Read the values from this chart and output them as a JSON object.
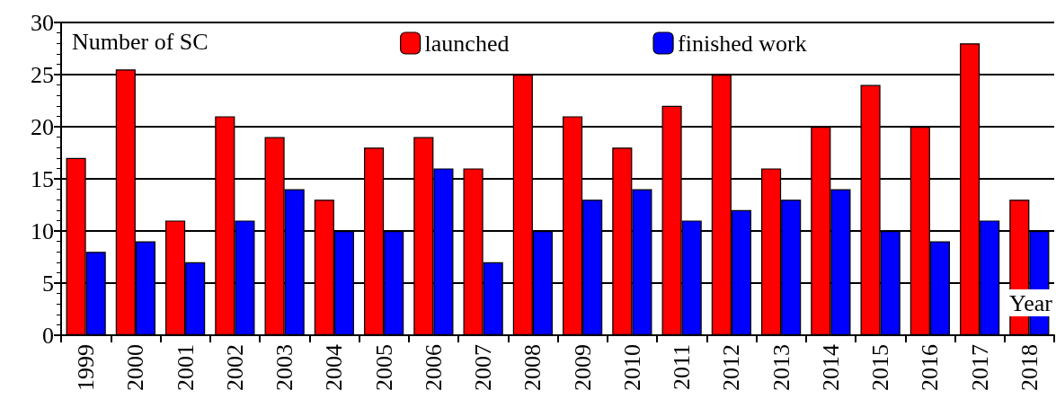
{
  "chart_data": {
    "type": "bar",
    "ylabel": "Number of SC",
    "xlabel": "Year",
    "categories": [
      "1999",
      "2000",
      "2001",
      "2002",
      "2003",
      "2004",
      "2005",
      "2006",
      "2007",
      "2008",
      "2009",
      "2010",
      "2011",
      "2012",
      "2013",
      "2014",
      "2015",
      "2016",
      "2017",
      "2018"
    ],
    "series": [
      {
        "name": "launched",
        "color": "#ff0000",
        "values": [
          17,
          25.5,
          11,
          21,
          19,
          13,
          18,
          19,
          16,
          25,
          21,
          18,
          22,
          25,
          16,
          20,
          24,
          20,
          28,
          13
        ]
      },
      {
        "name": "finished work",
        "color": "#0000ff",
        "values": [
          8,
          9,
          7,
          11,
          14,
          10,
          10,
          16,
          7,
          10,
          13,
          14,
          11,
          12,
          13,
          14,
          10,
          9,
          11,
          10
        ]
      }
    ],
    "ylim": [
      0,
      30
    ],
    "yticks": [
      0,
      5,
      10,
      15,
      20,
      25,
      30
    ],
    "grid": "y",
    "legend": "top"
  }
}
